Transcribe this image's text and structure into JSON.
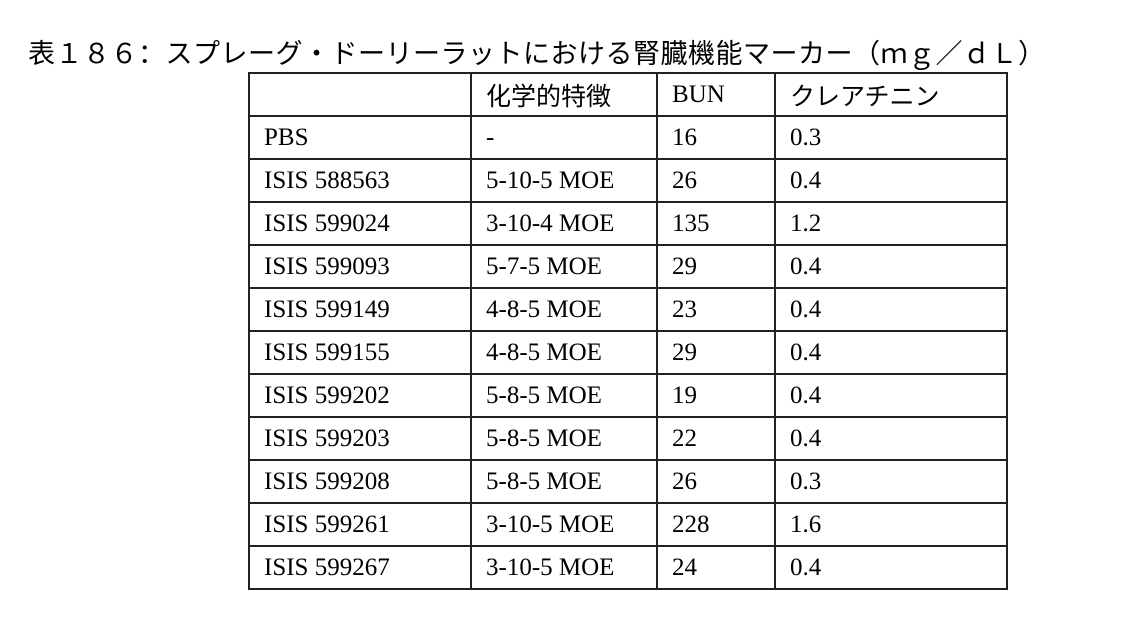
{
  "title": "表１８６：スプレーグ・ドーリーラットにおける腎臓機能マーカー（ｍｇ／ｄＬ）",
  "table": {
    "header": [
      "",
      "化学的特徴",
      "BUN",
      "クレアチニン"
    ],
    "rows": [
      [
        "PBS",
        "-",
        "16",
        "0.3"
      ],
      [
        "ISIS 588563",
        "5-10-5 MOE",
        "26",
        "0.4"
      ],
      [
        "ISIS 599024",
        "3-10-4 MOE",
        "135",
        "1.2"
      ],
      [
        "ISIS 599093",
        "5-7-5 MOE",
        "29",
        "0.4"
      ],
      [
        "ISIS 599149",
        "4-8-5 MOE",
        "23",
        "0.4"
      ],
      [
        "ISIS 599155",
        "4-8-5 MOE",
        "29",
        "0.4"
      ],
      [
        "ISIS 599202",
        "5-8-5 MOE",
        "19",
        "0.4"
      ],
      [
        "ISIS 599203",
        "5-8-5 MOE",
        "22",
        "0.4"
      ],
      [
        "ISIS 599208",
        "5-8-5 MOE",
        "26",
        "0.3"
      ],
      [
        "ISIS 599261",
        "3-10-5 MOE",
        "228",
        "1.6"
      ],
      [
        "ISIS 599267",
        "3-10-5 MOE",
        "24",
        "0.4"
      ]
    ]
  }
}
